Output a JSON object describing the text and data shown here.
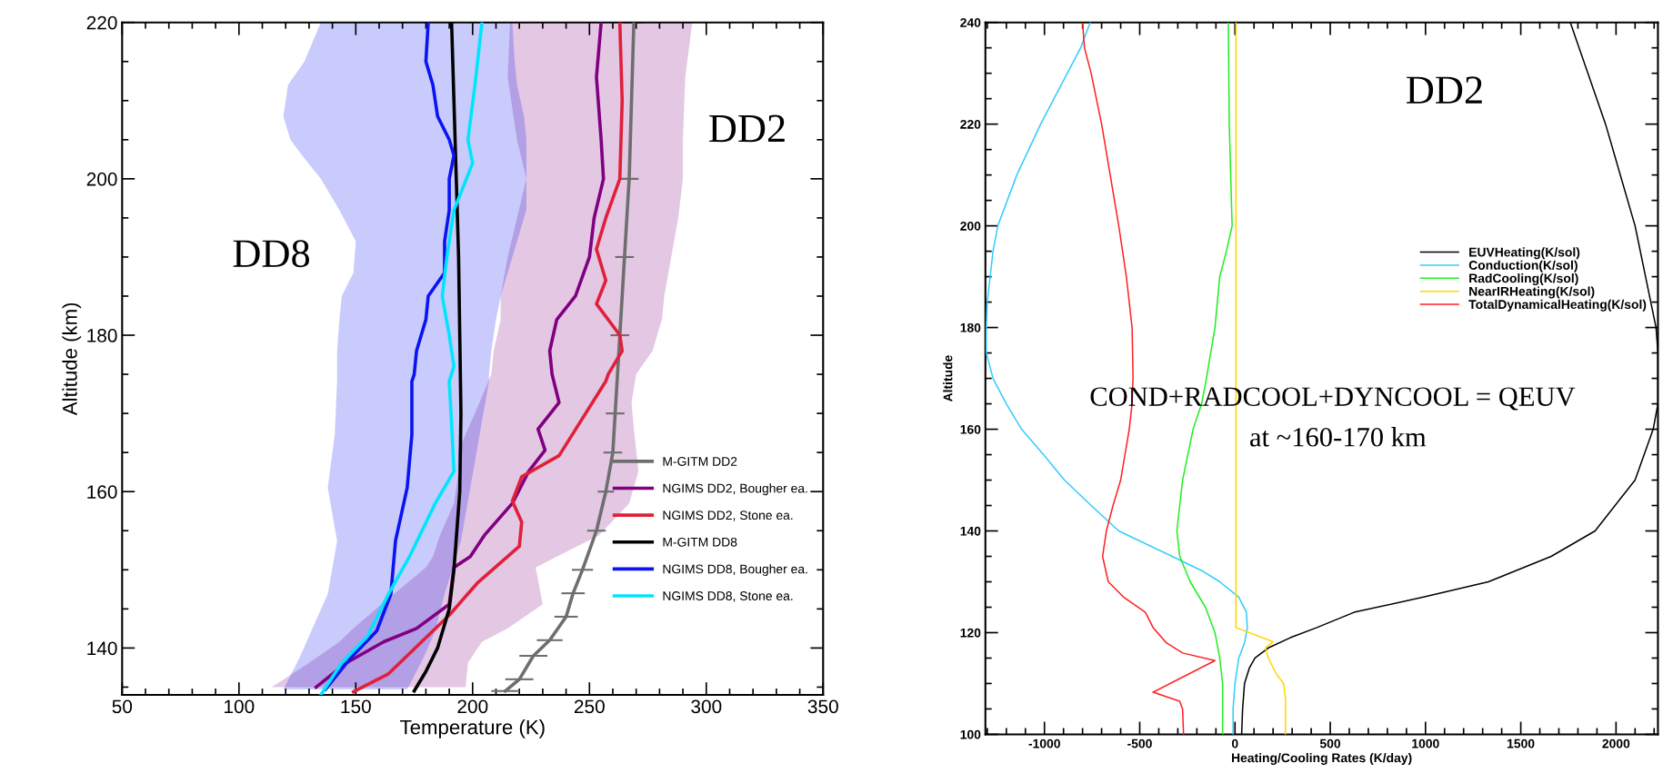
{
  "chart_data": [
    {
      "type": "line",
      "orientation": "horizontal",
      "xlabel": "Temperature (K)",
      "ylabel": "Altitude (km)",
      "legend": "bottom right",
      "grid": false,
      "xlim": [
        50,
        350
      ],
      "ylim": [
        134,
        220
      ],
      "xticks": [
        50,
        {
          "value": 60,
          "label": null
        },
        {
          "value": 70,
          "label": null
        },
        {
          "value": 80,
          "label": null
        },
        {
          "value": 90,
          "label": null
        },
        100,
        {
          "value": 110,
          "label": null
        },
        {
          "value": 120,
          "label": null
        },
        {
          "value": 130,
          "label": null
        },
        {
          "value": 140,
          "label": null
        },
        150,
        {
          "value": 160,
          "label": null
        },
        {
          "value": 170,
          "label": null
        },
        {
          "value": 180,
          "label": null
        },
        {
          "value": 190,
          "label": null
        },
        200,
        {
          "value": 210,
          "label": null
        },
        {
          "value": 220,
          "label": null
        },
        {
          "value": 230,
          "label": null
        },
        {
          "value": 240,
          "label": null
        },
        250,
        {
          "value": 260,
          "label": null
        },
        {
          "value": 270,
          "label": null
        },
        {
          "value": 280,
          "label": null
        },
        {
          "value": 290,
          "label": null
        },
        300,
        {
          "value": 310,
          "label": null
        },
        {
          "value": 320,
          "label": null
        },
        {
          "value": 330,
          "label": null
        },
        {
          "value": 340,
          "label": null
        },
        350
      ],
      "yticks": [
        {
          "value": 135,
          "label": null
        },
        140,
        {
          "value": 145,
          "label": null
        },
        {
          "value": 150,
          "label": null
        },
        {
          "value": 155,
          "label": null
        },
        160,
        {
          "value": 165,
          "label": null
        },
        {
          "value": 170,
          "label": null
        },
        {
          "value": 175,
          "label": null
        },
        180,
        {
          "value": 185,
          "label": null
        },
        {
          "value": 190,
          "label": null
        },
        {
          "value": 195,
          "label": null
        },
        200,
        {
          "value": 205,
          "label": null
        },
        {
          "value": 210,
          "label": null
        },
        {
          "value": 215,
          "label": null
        },
        220
      ],
      "annotations": [
        "DD8",
        "DD2"
      ],
      "series": [
        {
          "name": "M-GITM DD2",
          "color": "#6e6e6e",
          "x": [
            220,
            200,
            190,
            180,
            170,
            165,
            160,
            155,
            150,
            147,
            144,
            141,
            139,
            136,
            134.5
          ],
          "values": [
            269,
            267,
            265,
            263,
            261,
            260,
            257,
            253,
            247,
            243,
            240,
            233,
            226,
            220,
            214
          ],
          "errors": [
            4,
            4,
            4,
            4,
            4,
            4,
            3.5,
            4,
            4.5,
            5,
            5,
            5.5,
            6,
            6,
            6
          ]
        },
        {
          "name": "NGIMS DD2, Bougher ea.",
          "color": "#800080",
          "x": [
            220,
            213,
            205,
            200,
            195,
            190,
            185,
            182,
            178,
            175,
            171.4,
            168,
            165.3,
            162.6,
            158.5,
            154.4,
            151.7,
            150.3,
            145.6,
            142.5,
            140.8,
            138.1,
            135
          ],
          "values": [
            255,
            253,
            255,
            256,
            252,
            250,
            244,
            236,
            233,
            234,
            237,
            228,
            231,
            224,
            217,
            205,
            199,
            192,
            190,
            176,
            162,
            146,
            133
          ],
          "lower": [
            216,
            215,
            219,
            223,
            219,
            215,
            212,
            212,
            209,
            208,
            203,
            198,
            194,
            194,
            192,
            186,
            183,
            180,
            161,
            149,
            143,
            130,
            114
          ],
          "upper": [
            294,
            291,
            290,
            290,
            288,
            285,
            282,
            281,
            277,
            270,
            268,
            269,
            270,
            271,
            267,
            254,
            236,
            227,
            230,
            215,
            204,
            198,
            197
          ]
        },
        {
          "name": "NGIMS DD2, Stone ea.",
          "color": "#e0203a",
          "x": [
            220,
            210,
            200,
            195,
            191,
            187,
            184,
            180,
            178,
            175,
            174.1,
            164.6,
            161.9,
            158.8,
            156.1,
            153,
            148.3,
            144.2,
            136.7,
            134.4
          ],
          "values": [
            263,
            264,
            263,
            257,
            253,
            257,
            253,
            263,
            264,
            258,
            257,
            237,
            221,
            217,
            221,
            220,
            202,
            190,
            164,
            149
          ]
        },
        {
          "name": "M-GITM DD8",
          "color": "#000000",
          "x": [
            220,
            210,
            200,
            190,
            180,
            170,
            160,
            150,
            145,
            140,
            137,
            134.5
          ],
          "values": [
            191,
            192,
            193,
            194,
            194.5,
            195,
            194.5,
            192,
            190,
            185,
            180,
            175
          ]
        },
        {
          "name": "NGIMS DD8, Bougher ea.",
          "color": "#0a14f0",
          "x": [
            220,
            215,
            212,
            208,
            205,
            203,
            200,
            196,
            192,
            188,
            185,
            182,
            178,
            175,
            174.1,
            167.3,
            160.5,
            153.7,
            146.9,
            142.2,
            138.8,
            134.7
          ],
          "values": [
            181,
            180,
            183,
            185,
            190,
            192,
            190,
            190,
            188,
            188,
            181,
            180,
            176,
            175,
            174,
            174,
            172,
            167,
            165,
            159,
            148,
            137
          ],
          "lower": [
            135,
            128,
            121,
            119,
            122,
            127,
            135,
            143,
            150,
            149,
            144,
            143,
            142,
            142,
            142,
            141,
            138,
            142,
            138,
            131,
            126,
            119
          ],
          "upper": [
            217,
            218,
            219,
            222,
            223,
            223,
            223,
            223,
            219,
            215,
            212,
            210,
            208,
            207,
            207,
            203,
            199,
            195,
            188,
            184,
            179,
            172
          ]
        },
        {
          "name": "NGIMS DD8, Stone ea.",
          "color": "#00e5ff",
          "x": [
            220,
            212,
            205,
            202,
            196,
            190,
            185,
            180,
            176,
            174.1,
            168.7,
            162.6,
            158.5,
            151.7,
            146.9,
            141.5,
            138.1,
            134
          ],
          "values": [
            204,
            201,
            198,
            200,
            192,
            189,
            187,
            190,
            192,
            190,
            191,
            192,
            184,
            173,
            164,
            155,
            144,
            135
          ]
        }
      ]
    },
    {
      "type": "line",
      "orientation": "horizontal",
      "xlabel": "Heating/Cooling Rates (K/day)",
      "ylabel": "Altitude",
      "legend": "right",
      "grid": false,
      "xlim": [
        -1310,
        2220
      ],
      "ylim": [
        100,
        240
      ],
      "xticks": [
        {
          "value": -1300,
          "label": null
        },
        {
          "value": -1200,
          "label": null
        },
        {
          "value": -1100,
          "label": null
        },
        -1000,
        {
          "value": -900,
          "label": null
        },
        {
          "value": -800,
          "label": null
        },
        {
          "value": -700,
          "label": null
        },
        {
          "value": -600,
          "label": null
        },
        -500,
        {
          "value": -400,
          "label": null
        },
        {
          "value": -300,
          "label": null
        },
        {
          "value": -200,
          "label": null
        },
        {
          "value": -100,
          "label": null
        },
        0,
        {
          "value": 100,
          "label": null
        },
        {
          "value": 200,
          "label": null
        },
        {
          "value": 300,
          "label": null
        },
        {
          "value": 400,
          "label": null
        },
        500,
        {
          "value": 600,
          "label": null
        },
        {
          "value": 700,
          "label": null
        },
        {
          "value": 800,
          "label": null
        },
        {
          "value": 900,
          "label": null
        },
        1000,
        {
          "value": 1100,
          "label": null
        },
        {
          "value": 1200,
          "label": null
        },
        {
          "value": 1300,
          "label": null
        },
        {
          "value": 1400,
          "label": null
        },
        1500,
        {
          "value": 1600,
          "label": null
        },
        {
          "value": 1700,
          "label": null
        },
        {
          "value": 1800,
          "label": null
        },
        {
          "value": 1900,
          "label": null
        },
        2000,
        {
          "value": 2100,
          "label": null
        },
        {
          "value": 2200,
          "label": null
        }
      ],
      "yticks": [
        100,
        {
          "value": 105,
          "label": null
        },
        {
          "value": 110,
          "label": null
        },
        {
          "value": 115,
          "label": null
        },
        120,
        {
          "value": 125,
          "label": null
        },
        {
          "value": 130,
          "label": null
        },
        {
          "value": 135,
          "label": null
        },
        140,
        {
          "value": 145,
          "label": null
        },
        {
          "value": 150,
          "label": null
        },
        {
          "value": 155,
          "label": null
        },
        160,
        {
          "value": 165,
          "label": null
        },
        {
          "value": 170,
          "label": null
        },
        {
          "value": 175,
          "label": null
        },
        180,
        {
          "value": 185,
          "label": null
        },
        {
          "value": 190,
          "label": null
        },
        {
          "value": 195,
          "label": null
        },
        200,
        {
          "value": 205,
          "label": null
        },
        {
          "value": 210,
          "label": null
        },
        {
          "value": 215,
          "label": null
        },
        220,
        {
          "value": 225,
          "label": null
        },
        {
          "value": 230,
          "label": null
        },
        {
          "value": 235,
          "label": null
        },
        240
      ],
      "annotations": [
        "DD2",
        "COND+RADCOOL+DYNCOOL = QEUV",
        "at ~160-170 km"
      ],
      "series": [
        {
          "name": "EUVHeating(K/sol)",
          "color": "#000000",
          "x": [
            240,
            220,
            200,
            190,
            180,
            175,
            165,
            160,
            150,
            140,
            135,
            130,
            127,
            124,
            121,
            119,
            117,
            115,
            113,
            110,
            105,
            100
          ],
          "values": [
            1760,
            1945,
            2100,
            2155,
            2210,
            2220,
            2220,
            2195,
            2100,
            1890,
            1660,
            1330,
            990,
            625,
            430,
            290,
            175,
            105,
            75,
            50,
            40,
            35
          ]
        },
        {
          "name": "Conduction(K/sol)",
          "color": "#33ccff",
          "x": [
            240,
            235,
            230,
            220,
            210,
            200,
            195,
            190,
            185,
            180,
            175,
            170,
            165,
            160,
            155,
            150,
            145,
            140,
            135,
            132,
            130,
            127,
            124,
            121,
            118,
            115,
            110,
            105,
            100
          ],
          "values": [
            -760,
            -810,
            -880,
            -1020,
            -1145,
            -1245,
            -1270,
            -1285,
            -1300,
            -1305,
            -1305,
            -1270,
            -1200,
            -1120,
            -1005,
            -895,
            -755,
            -610,
            -330,
            -165,
            -80,
            20,
            60,
            65,
            50,
            20,
            0,
            -10,
            -10
          ]
        },
        {
          "name": "RadCooling(K/sol)",
          "color": "#22ee22",
          "x": [
            240,
            220,
            200,
            195,
            190,
            180,
            170,
            165,
            160,
            150,
            140,
            135,
            130,
            125,
            120,
            115,
            110,
            100
          ],
          "values": [
            -35,
            -30,
            -15,
            -45,
            -80,
            -105,
            -150,
            -175,
            -220,
            -275,
            -305,
            -290,
            -235,
            -155,
            -105,
            -80,
            -65,
            -65
          ]
        },
        {
          "name": "NearIRHeating(K/sol)",
          "color": "#ffd700",
          "x": [
            240,
            121,
            118.2,
            117,
            115,
            112,
            110,
            107,
            100
          ],
          "values": [
            5,
            5,
            200,
            160,
            175,
            215,
            255,
            265,
            265
          ]
        },
        {
          "name": "TotalDynamicalHeating(K/sol)",
          "color": "#ff2020",
          "x": [
            240,
            235,
            230,
            220,
            210,
            200,
            190,
            180,
            170,
            165,
            160,
            150,
            145,
            140,
            135,
            130,
            127,
            124,
            121,
            118,
            116,
            114.5,
            108.3,
            106.5,
            105,
            100
          ],
          "values": [
            -800,
            -790,
            -755,
            -700,
            -655,
            -610,
            -570,
            -540,
            -535,
            -540,
            -555,
            -600,
            -640,
            -675,
            -695,
            -665,
            -585,
            -470,
            -430,
            -360,
            -275,
            -105,
            -430,
            -290,
            -275,
            -270
          ]
        }
      ]
    }
  ]
}
